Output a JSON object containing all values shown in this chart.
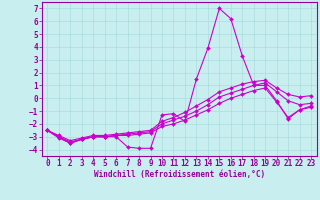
{
  "title": "",
  "xlabel": "Windchill (Refroidissement éolien,°C)",
  "ylabel": "",
  "bg_color": "#c8eef0",
  "line_color": "#cc00cc",
  "grid_color": "#aadddd",
  "xlim": [
    -0.5,
    23.5
  ],
  "ylim": [
    -4.5,
    7.5
  ],
  "yticks": [
    -4,
    -3,
    -2,
    -1,
    0,
    1,
    2,
    3,
    4,
    5,
    6,
    7
  ],
  "xticks": [
    0,
    1,
    2,
    3,
    4,
    5,
    6,
    7,
    8,
    9,
    10,
    11,
    12,
    13,
    14,
    15,
    16,
    17,
    18,
    19,
    20,
    21,
    22,
    23
  ],
  "series": [
    {
      "x": [
        0,
        1,
        2,
        3,
        4,
        5,
        6,
        7,
        8,
        9,
        10,
        11,
        12,
        13,
        14,
        15,
        16,
        17,
        18,
        19,
        20,
        21,
        22,
        23
      ],
      "y": [
        -2.5,
        -3.1,
        -3.5,
        -3.2,
        -3.0,
        -3.0,
        -3.0,
        -3.8,
        -3.9,
        -3.9,
        -1.3,
        -1.2,
        -1.8,
        1.5,
        3.9,
        7.0,
        6.2,
        3.3,
        1.0,
        1.0,
        -0.2,
        -1.6,
        -0.9,
        -0.7
      ]
    },
    {
      "x": [
        0,
        1,
        2,
        3,
        4,
        5,
        6,
        7,
        8,
        9,
        10,
        11,
        12,
        13,
        14,
        15,
        16,
        17,
        18,
        19,
        20,
        21,
        22,
        23
      ],
      "y": [
        -2.5,
        -3.0,
        -3.5,
        -3.2,
        -3.0,
        -3.0,
        -2.9,
        -2.9,
        -2.8,
        -2.7,
        -2.2,
        -2.0,
        -1.7,
        -1.3,
        -0.9,
        -0.4,
        0.0,
        0.3,
        0.6,
        0.8,
        -0.3,
        -1.5,
        -0.9,
        -0.6
      ]
    },
    {
      "x": [
        0,
        1,
        2,
        3,
        4,
        5,
        6,
        7,
        8,
        9,
        10,
        11,
        12,
        13,
        14,
        15,
        16,
        17,
        18,
        19,
        20,
        21,
        22,
        23
      ],
      "y": [
        -2.5,
        -3.0,
        -3.4,
        -3.2,
        -3.0,
        -3.0,
        -2.9,
        -2.8,
        -2.7,
        -2.6,
        -2.0,
        -1.7,
        -1.4,
        -1.0,
        -0.5,
        0.1,
        0.4,
        0.7,
        1.0,
        1.2,
        0.5,
        -0.2,
        -0.5,
        -0.4
      ]
    },
    {
      "x": [
        0,
        1,
        2,
        3,
        4,
        5,
        6,
        7,
        8,
        9,
        10,
        11,
        12,
        13,
        14,
        15,
        16,
        17,
        18,
        19,
        20,
        21,
        22,
        23
      ],
      "y": [
        -2.5,
        -2.9,
        -3.3,
        -3.1,
        -2.9,
        -2.9,
        -2.8,
        -2.7,
        -2.6,
        -2.5,
        -1.8,
        -1.5,
        -1.1,
        -0.6,
        -0.1,
        0.5,
        0.8,
        1.1,
        1.3,
        1.4,
        0.8,
        0.3,
        0.1,
        0.2
      ]
    }
  ],
  "tick_fontsize": 5.5,
  "xlabel_fontsize": 5.5,
  "tick_color": "#990099",
  "label_color": "#990099"
}
